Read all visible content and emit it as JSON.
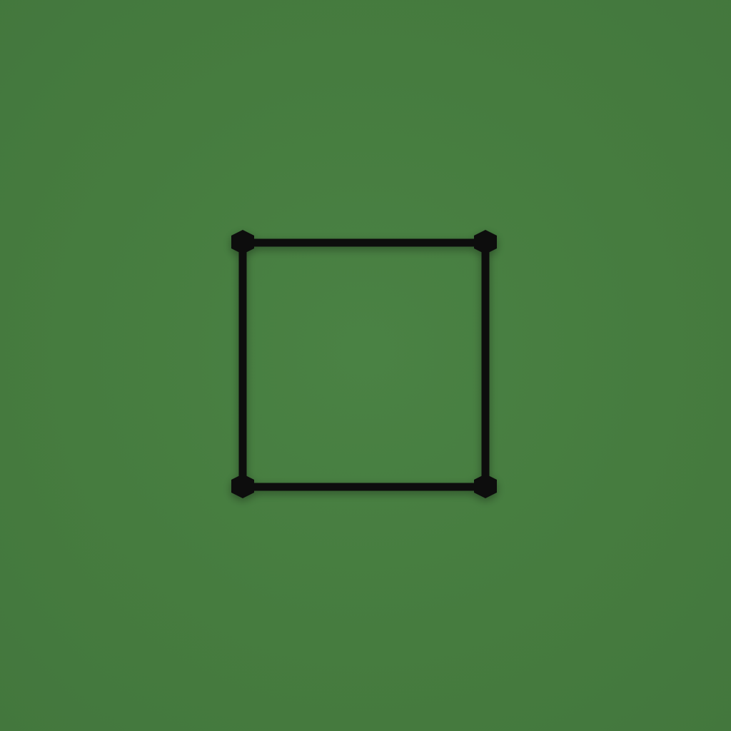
{
  "scene": {
    "background_color": "#457a3f",
    "frame_color": "#0a0a0a",
    "shape": "square-outline",
    "corner_markers": "hexagon"
  }
}
